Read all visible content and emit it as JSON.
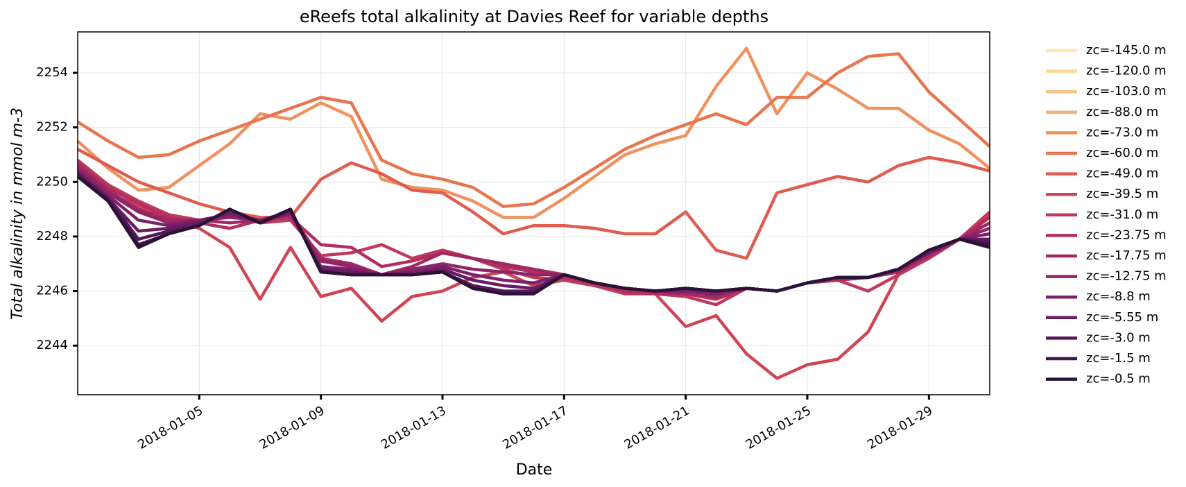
{
  "chart_data": {
    "type": "line",
    "title": "eReefs total alkalinity at Davies Reef for variable depths",
    "xlabel": "Date",
    "ylabel": "Total alkalinity in mmol m-3",
    "x": [
      "2018-01-01",
      "2018-01-02",
      "2018-01-03",
      "2018-01-04",
      "2018-01-05",
      "2018-01-06",
      "2018-01-07",
      "2018-01-08",
      "2018-01-09",
      "2018-01-10",
      "2018-01-11",
      "2018-01-12",
      "2018-01-13",
      "2018-01-14",
      "2018-01-15",
      "2018-01-16",
      "2018-01-17",
      "2018-01-18",
      "2018-01-19",
      "2018-01-20",
      "2018-01-21",
      "2018-01-22",
      "2018-01-23",
      "2018-01-24",
      "2018-01-25",
      "2018-01-26",
      "2018-01-27",
      "2018-01-28",
      "2018-01-29",
      "2018-01-30",
      "2018-01-31"
    ],
    "xlim": [
      "2018-01-01",
      "2018-01-31"
    ],
    "xticks": [
      "2018-01-05",
      "2018-01-09",
      "2018-01-13",
      "2018-01-17",
      "2018-01-21",
      "2018-01-25",
      "2018-01-29"
    ],
    "ylim": [
      2242.2,
      2255.5
    ],
    "yticks": [
      2244,
      2246,
      2248,
      2250,
      2252,
      2254
    ],
    "grid": true,
    "legend": "outside right",
    "series": [
      {
        "name": "zc=-145.0 m",
        "color": "#fde9a9",
        "values": [
          null,
          null,
          null,
          null,
          null,
          null,
          null,
          null,
          null,
          null,
          null,
          null,
          null,
          null,
          null,
          null,
          null,
          null,
          null,
          null,
          null,
          null,
          null,
          null,
          null,
          null,
          null,
          null,
          null,
          null,
          null
        ]
      },
      {
        "name": "zc=-120.0 m",
        "color": "#fbd79a",
        "values": [
          null,
          null,
          null,
          null,
          null,
          null,
          null,
          null,
          null,
          null,
          null,
          null,
          null,
          null,
          null,
          null,
          null,
          null,
          null,
          null,
          null,
          null,
          null,
          null,
          null,
          null,
          null,
          null,
          null,
          null,
          null
        ]
      },
      {
        "name": "zc=-103.0 m",
        "color": "#f8c48a",
        "values": [
          null,
          null,
          null,
          null,
          null,
          null,
          null,
          null,
          null,
          null,
          null,
          null,
          null,
          null,
          null,
          null,
          null,
          null,
          null,
          null,
          null,
          null,
          null,
          null,
          null,
          null,
          null,
          null,
          null,
          null,
          null
        ]
      },
      {
        "name": "zc=-88.0 m",
        "color": "#f5ad7a",
        "values": [
          null,
          null,
          null,
          null,
          null,
          null,
          null,
          null,
          null,
          null,
          null,
          null,
          null,
          null,
          null,
          null,
          null,
          null,
          null,
          null,
          null,
          null,
          null,
          null,
          null,
          null,
          null,
          null,
          null,
          null,
          null
        ]
      },
      {
        "name": "zc=-73.0 m",
        "color": "#f0925f",
        "values": [
          2251.5,
          2250.5,
          2249.7,
          2249.8,
          2250.6,
          2251.4,
          2252.5,
          2252.3,
          2252.9,
          2252.4,
          2250.1,
          2249.8,
          2249.7,
          2249.3,
          2248.7,
          2248.7,
          2249.4,
          2250.2,
          2251.0,
          2251.4,
          2251.7,
          2253.5,
          2254.9,
          2252.5,
          2254.0,
          2253.4,
          2252.7,
          2252.7,
          2251.9,
          2251.4,
          2250.5
        ]
      },
      {
        "name": "zc=-60.0 m",
        "color": "#e9754f",
        "values": [
          2252.2,
          2251.5,
          2250.9,
          2251.0,
          2251.5,
          2251.9,
          2252.3,
          2252.7,
          2253.1,
          2252.9,
          2250.8,
          2250.3,
          2250.1,
          2249.8,
          2249.1,
          2249.2,
          2249.8,
          2250.5,
          2251.2,
          2251.7,
          2252.1,
          2252.5,
          2252.1,
          2253.1,
          2253.1,
          2254.0,
          2254.6,
          2254.7,
          2253.3,
          2252.3,
          2251.3
        ]
      },
      {
        "name": "zc=-49.0 m",
        "color": "#df5c4f",
        "values": [
          2251.2,
          2250.6,
          2250.0,
          2249.6,
          2249.2,
          2248.9,
          2248.7,
          2248.7,
          2250.1,
          2250.7,
          2250.3,
          2249.7,
          2249.6,
          2248.9,
          2248.1,
          2248.4,
          2248.4,
          2248.3,
          2248.1,
          2248.1,
          2248.9,
          2247.5,
          2247.2,
          2249.6,
          2249.9,
          2250.2,
          2250.0,
          2250.6,
          2250.9,
          2250.7,
          2250.4
        ]
      },
      {
        "name": "zc=-39.5 m",
        "color": "#cf4553",
        "values": [
          2250.5,
          2249.9,
          2249.1,
          2248.6,
          2248.3,
          2247.6,
          2245.7,
          2247.6,
          2245.8,
          2246.1,
          2244.9,
          2245.8,
          2246.0,
          2246.5,
          2246.7,
          2246.2,
          2246.4,
          2246.2,
          2246.0,
          2245.9,
          2244.7,
          2245.1,
          2243.7,
          2242.8,
          2243.3,
          2243.5,
          2244.5,
          2246.6,
          2247.2,
          2247.9,
          2248.8
        ]
      },
      {
        "name": "zc=-31.0 m",
        "color": "#c0385b",
        "values": [
          2250.8,
          2249.9,
          2249.3,
          2248.8,
          2248.6,
          2248.8,
          2248.5,
          2248.6,
          2247.3,
          2247.4,
          2247.7,
          2247.2,
          2247.5,
          2247.2,
          2246.8,
          2246.5,
          2246.4,
          2246.2,
          2245.9,
          2245.9,
          2245.8,
          2245.5,
          2246.1,
          2246.0,
          2246.3,
          2246.4,
          2246.0,
          2246.6,
          2247.2,
          2247.9,
          2248.9
        ]
      },
      {
        "name": "zc=-23.75 m",
        "color": "#b22e5f",
        "values": [
          2250.7,
          2249.8,
          2249.2,
          2248.7,
          2248.5,
          2248.3,
          2248.6,
          2248.7,
          2247.7,
          2247.6,
          2246.9,
          2247.1,
          2247.4,
          2247.2,
          2246.9,
          2246.7,
          2246.5,
          2246.3,
          2246.0,
          2245.9,
          2245.9,
          2245.7,
          2246.1,
          2246.0,
          2246.3,
          2246.4,
          2246.5,
          2246.7,
          2247.3,
          2247.9,
          2248.7
        ]
      },
      {
        "name": "zc=-17.75 m",
        "color": "#a12863",
        "values": [
          2250.6,
          2249.7,
          2249.0,
          2248.6,
          2248.6,
          2248.5,
          2248.6,
          2248.8,
          2247.2,
          2247.0,
          2246.6,
          2246.9,
          2247.4,
          2247.2,
          2247.0,
          2246.8,
          2246.6,
          2246.3,
          2246.1,
          2246.0,
          2245.9,
          2245.8,
          2246.1,
          2246.0,
          2246.3,
          2246.5,
          2246.5,
          2246.7,
          2247.3,
          2247.9,
          2248.5
        ]
      },
      {
        "name": "zc=-12.75 m",
        "color": "#8f2467",
        "values": [
          2250.5,
          2249.6,
          2248.9,
          2248.5,
          2248.6,
          2248.7,
          2248.6,
          2248.8,
          2247.1,
          2246.9,
          2246.6,
          2246.8,
          2247.0,
          2246.8,
          2246.7,
          2246.6,
          2246.6,
          2246.3,
          2246.1,
          2246.0,
          2246.0,
          2245.9,
          2246.1,
          2246.0,
          2246.3,
          2246.5,
          2246.5,
          2246.8,
          2247.4,
          2247.9,
          2248.3
        ]
      },
      {
        "name": "zc=-8.8 m",
        "color": "#7c2067",
        "values": [
          2250.4,
          2249.5,
          2248.6,
          2248.4,
          2248.6,
          2248.8,
          2248.6,
          2248.9,
          2246.9,
          2246.8,
          2246.6,
          2246.7,
          2246.9,
          2246.6,
          2246.4,
          2246.3,
          2246.6,
          2246.3,
          2246.1,
          2246.0,
          2246.0,
          2245.9,
          2246.1,
          2246.0,
          2246.3,
          2246.5,
          2246.5,
          2246.8,
          2247.4,
          2247.9,
          2248.1
        ]
      },
      {
        "name": "zc=-5.55 m",
        "color": "#681c62",
        "values": [
          2250.3,
          2249.4,
          2248.2,
          2248.3,
          2248.5,
          2248.9,
          2248.5,
          2248.9,
          2246.8,
          2246.7,
          2246.6,
          2246.6,
          2246.8,
          2246.4,
          2246.2,
          2246.1,
          2246.6,
          2246.3,
          2246.1,
          2246.0,
          2246.1,
          2246.0,
          2246.1,
          2246.0,
          2246.3,
          2246.5,
          2246.5,
          2246.8,
          2247.4,
          2247.9,
          2247.9
        ]
      },
      {
        "name": "zc=-3.0 m",
        "color": "#541958",
        "values": [
          2250.3,
          2249.4,
          2247.9,
          2248.2,
          2248.4,
          2249.0,
          2248.5,
          2249.0,
          2246.7,
          2246.6,
          2246.6,
          2246.6,
          2246.7,
          2246.2,
          2246.0,
          2246.0,
          2246.6,
          2246.3,
          2246.1,
          2246.0,
          2246.1,
          2246.0,
          2246.1,
          2246.0,
          2246.3,
          2246.5,
          2246.5,
          2246.8,
          2247.5,
          2247.9,
          2247.8
        ]
      },
      {
        "name": "zc=-1.5 m",
        "color": "#3e1747",
        "values": [
          2250.2,
          2249.3,
          2247.7,
          2248.1,
          2248.4,
          2249.0,
          2248.5,
          2249.0,
          2246.7,
          2246.6,
          2246.6,
          2246.6,
          2246.7,
          2246.1,
          2245.9,
          2245.9,
          2246.6,
          2246.3,
          2246.1,
          2246.0,
          2246.1,
          2246.0,
          2246.1,
          2246.0,
          2246.3,
          2246.5,
          2246.5,
          2246.8,
          2247.5,
          2247.9,
          2247.7
        ]
      },
      {
        "name": "zc=-0.5 m",
        "color": "#2a1336",
        "values": [
          2250.2,
          2249.3,
          2247.6,
          2248.1,
          2248.4,
          2249.0,
          2248.5,
          2249.0,
          2246.7,
          2246.6,
          2246.6,
          2246.6,
          2246.7,
          2246.1,
          2245.9,
          2245.9,
          2246.6,
          2246.3,
          2246.1,
          2246.0,
          2246.1,
          2246.0,
          2246.1,
          2246.0,
          2246.3,
          2246.5,
          2246.5,
          2246.8,
          2247.5,
          2247.9,
          2247.6
        ]
      }
    ]
  }
}
